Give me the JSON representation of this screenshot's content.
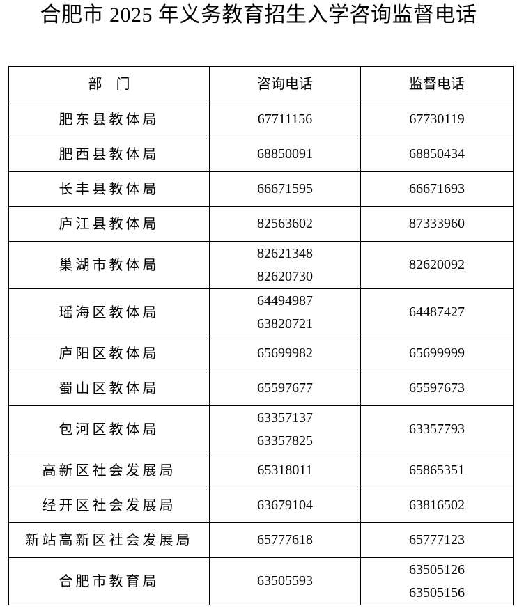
{
  "title": "合肥市 2025 年义务教育招生入学咨询监督电话",
  "table": {
    "headers": [
      "部　门",
      "咨询电话",
      "监督电话"
    ],
    "rows": [
      {
        "department": "肥东县教体局",
        "consult": [
          "67711156"
        ],
        "supervise": [
          "67730119"
        ]
      },
      {
        "department": "肥西县教体局",
        "consult": [
          "68850091"
        ],
        "supervise": [
          "68850434"
        ]
      },
      {
        "department": "长丰县教体局",
        "consult": [
          "66671595"
        ],
        "supervise": [
          "66671693"
        ]
      },
      {
        "department": "庐江县教体局",
        "consult": [
          "82563602"
        ],
        "supervise": [
          "87333960"
        ]
      },
      {
        "department": "巢湖市教体局",
        "consult": [
          "82621348",
          "82620730"
        ],
        "supervise": [
          "82620092"
        ]
      },
      {
        "department": "瑶海区教体局",
        "consult": [
          "64494987",
          "63820721"
        ],
        "supervise": [
          "64487427"
        ]
      },
      {
        "department": "庐阳区教体局",
        "consult": [
          "65699982"
        ],
        "supervise": [
          "65699999"
        ]
      },
      {
        "department": "蜀山区教体局",
        "consult": [
          "65597677"
        ],
        "supervise": [
          "65597673"
        ]
      },
      {
        "department": "包河区教体局",
        "consult": [
          "63357137",
          "63357825"
        ],
        "supervise": [
          "63357793"
        ]
      },
      {
        "department": "高新区社会发展局",
        "consult": [
          "65318011"
        ],
        "supervise": [
          "65865351"
        ]
      },
      {
        "department": "经开区社会发展局",
        "consult": [
          "63679104"
        ],
        "supervise": [
          "63816502"
        ]
      },
      {
        "department": "新站高新区社会发展局",
        "consult": [
          "65777618"
        ],
        "supervise": [
          "65777123"
        ]
      },
      {
        "department": "合肥市教育局",
        "consult": [
          "63505593"
        ],
        "supervise": [
          "63505126",
          "63505156"
        ]
      }
    ]
  }
}
